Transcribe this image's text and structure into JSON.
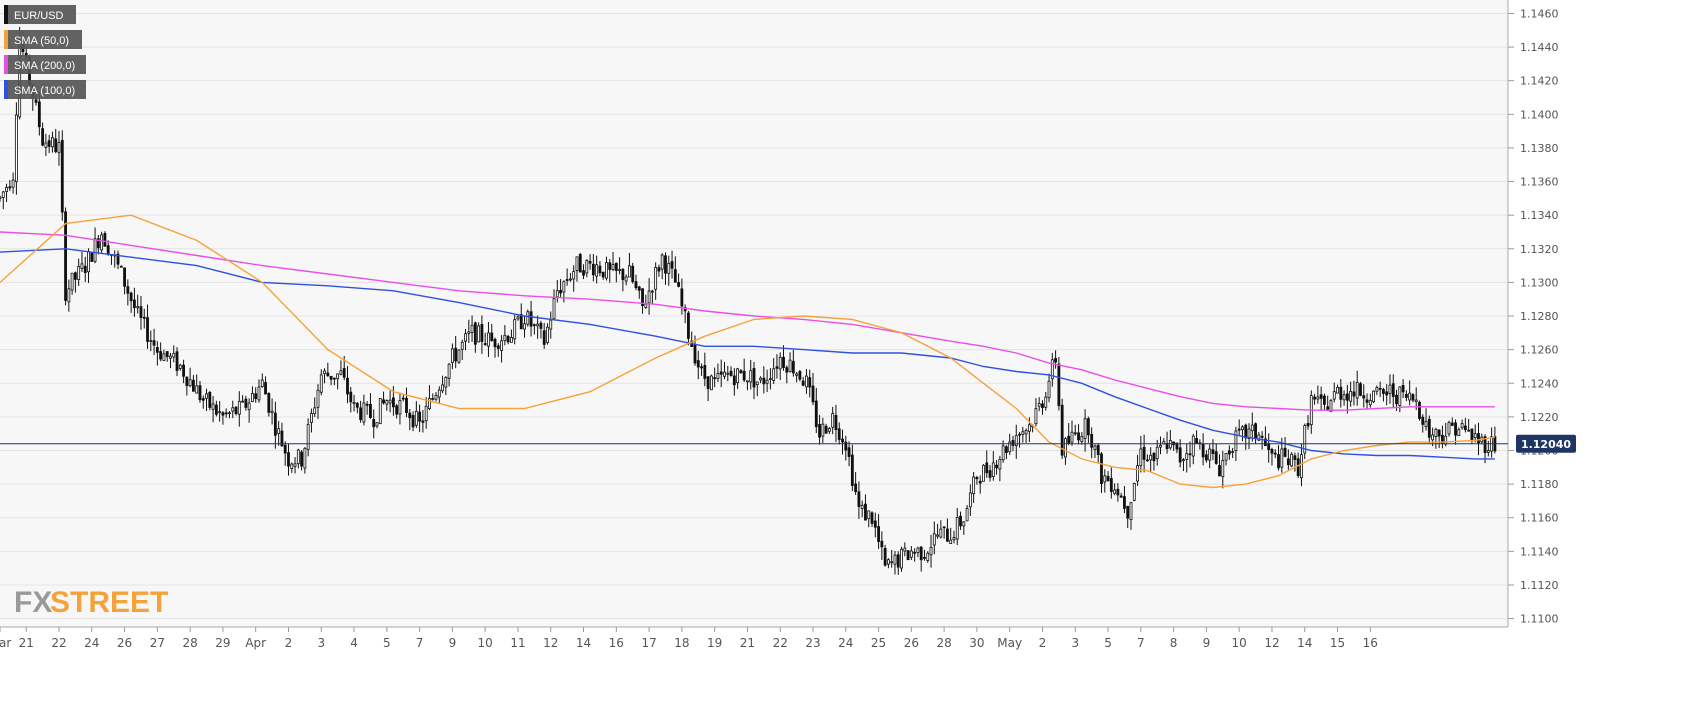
{
  "legend": [
    {
      "label": "EUR/USD",
      "color": "#111111"
    },
    {
      "label": "SMA (50,0)",
      "color": "#f5a23a"
    },
    {
      "label": "SMA (200,0)",
      "color": "#e84fe8"
    },
    {
      "label": "SMA (100,0)",
      "color": "#3050e0"
    }
  ],
  "brand": {
    "part1": "FX",
    "part2": "STREET",
    "color1": "#9a9a9a",
    "color2": "#f5a23a"
  },
  "price_tag": {
    "value": "1.12040",
    "color": "#1f3566"
  },
  "colors": {
    "background": "#f7f7f7",
    "grid": "#e4e4e4",
    "bull_fill": "#ffffff",
    "bear_fill": "#111111",
    "candle_stroke": "#111111",
    "last_price_line": "#1f3566"
  },
  "chart_data": {
    "type": "candlestick",
    "symbol": "EUR/USD",
    "ylim": [
      1.1095,
      1.1468
    ],
    "y_ticks": [
      "1.1460",
      "1.1440",
      "1.1420",
      "1.1400",
      "1.1380",
      "1.1360",
      "1.1340",
      "1.1320",
      "1.1300",
      "1.1280",
      "1.1260",
      "1.1240",
      "1.1220",
      "1.1200",
      "1.1180",
      "1.1160",
      "1.1140",
      "1.1120",
      "1.1100"
    ],
    "x_ticks": [
      {
        "label": "Mar",
        "x": 0
      },
      {
        "label": "21",
        "x": 8
      },
      {
        "label": "22",
        "x": 18
      },
      {
        "label": "24",
        "x": 28
      },
      {
        "label": "26",
        "x": 38
      },
      {
        "label": "27",
        "x": 48
      },
      {
        "label": "28",
        "x": 58
      },
      {
        "label": "29",
        "x": 68
      },
      {
        "label": "Apr",
        "x": 78
      },
      {
        "label": "2",
        "x": 88
      },
      {
        "label": "3",
        "x": 98
      },
      {
        "label": "4",
        "x": 108
      },
      {
        "label": "5",
        "x": 118
      },
      {
        "label": "7",
        "x": 128
      },
      {
        "label": "9",
        "x": 138
      },
      {
        "label": "10",
        "x": 148
      },
      {
        "label": "11",
        "x": 158
      },
      {
        "label": "12",
        "x": 168
      },
      {
        "label": "14",
        "x": 178
      },
      {
        "label": "16",
        "x": 188
      },
      {
        "label": "17",
        "x": 198
      },
      {
        "label": "18",
        "x": 208
      },
      {
        "label": "19",
        "x": 218
      },
      {
        "label": "21",
        "x": 228
      },
      {
        "label": "22",
        "x": 238
      },
      {
        "label": "23",
        "x": 248
      },
      {
        "label": "24",
        "x": 258
      },
      {
        "label": "25",
        "x": 268
      },
      {
        "label": "26",
        "x": 278
      },
      {
        "label": "28",
        "x": 288
      },
      {
        "label": "30",
        "x": 298
      },
      {
        "label": "May",
        "x": 308
      },
      {
        "label": "2",
        "x": 318
      },
      {
        "label": "3",
        "x": 328
      },
      {
        "label": "5",
        "x": 338
      },
      {
        "label": "7",
        "x": 348
      },
      {
        "label": "8",
        "x": 358
      },
      {
        "label": "9",
        "x": 368
      },
      {
        "label": "10",
        "x": 378
      },
      {
        "label": "12",
        "x": 388
      },
      {
        "label": "14",
        "x": 398
      },
      {
        "label": "15",
        "x": 408
      },
      {
        "label": "16",
        "x": 418
      }
    ],
    "last_price": 1.1204,
    "anchors": [
      [
        0,
        1.135
      ],
      [
        4,
        1.1365
      ],
      [
        6,
        1.1445
      ],
      [
        9,
        1.142
      ],
      [
        13,
        1.1385
      ],
      [
        18,
        1.138
      ],
      [
        20,
        1.1295
      ],
      [
        26,
        1.131
      ],
      [
        31,
        1.133
      ],
      [
        37,
        1.1305
      ],
      [
        42,
        1.128
      ],
      [
        48,
        1.126
      ],
      [
        55,
        1.125
      ],
      [
        62,
        1.123
      ],
      [
        68,
        1.122
      ],
      [
        74,
        1.1225
      ],
      [
        80,
        1.124
      ],
      [
        84,
        1.1215
      ],
      [
        88,
        1.1195
      ],
      [
        92,
        1.1195
      ],
      [
        98,
        1.1245
      ],
      [
        104,
        1.1245
      ],
      [
        108,
        1.1225
      ],
      [
        114,
        1.122
      ],
      [
        118,
        1.123
      ],
      [
        124,
        1.1225
      ],
      [
        128,
        1.1215
      ],
      [
        134,
        1.124
      ],
      [
        138,
        1.1255
      ],
      [
        144,
        1.127
      ],
      [
        150,
        1.1265
      ],
      [
        156,
        1.127
      ],
      [
        160,
        1.128
      ],
      [
        166,
        1.1265
      ],
      [
        170,
        1.1295
      ],
      [
        176,
        1.131
      ],
      [
        182,
        1.131
      ],
      [
        186,
        1.1305
      ],
      [
        192,
        1.1305
      ],
      [
        196,
        1.1285
      ],
      [
        202,
        1.1315
      ],
      [
        206,
        1.13
      ],
      [
        210,
        1.127
      ],
      [
        214,
        1.1245
      ],
      [
        218,
        1.124
      ],
      [
        222,
        1.1245
      ],
      [
        228,
        1.1245
      ],
      [
        232,
        1.124
      ],
      [
        238,
        1.1255
      ],
      [
        242,
        1.125
      ],
      [
        246,
        1.124
      ],
      [
        250,
        1.121
      ],
      [
        254,
        1.122
      ],
      [
        258,
        1.1205
      ],
      [
        262,
        1.1165
      ],
      [
        266,
        1.116
      ],
      [
        270,
        1.113
      ],
      [
        274,
        1.1135
      ],
      [
        278,
        1.114
      ],
      [
        282,
        1.114
      ],
      [
        286,
        1.115
      ],
      [
        290,
        1.115
      ],
      [
        294,
        1.116
      ],
      [
        298,
        1.1185
      ],
      [
        302,
        1.119
      ],
      [
        306,
        1.12
      ],
      [
        310,
        1.121
      ],
      [
        314,
        1.1215
      ],
      [
        318,
        1.123
      ],
      [
        322,
        1.1255
      ],
      [
        324,
        1.12
      ],
      [
        328,
        1.121
      ],
      [
        332,
        1.1215
      ],
      [
        336,
        1.1185
      ],
      [
        340,
        1.118
      ],
      [
        344,
        1.1165
      ],
      [
        348,
        1.12
      ],
      [
        352,
        1.1195
      ],
      [
        356,
        1.1205
      ],
      [
        360,
        1.1195
      ],
      [
        364,
        1.1205
      ],
      [
        368,
        1.12
      ],
      [
        372,
        1.119
      ],
      [
        376,
        1.1205
      ],
      [
        380,
        1.121
      ],
      [
        384,
        1.121
      ],
      [
        388,
        1.1195
      ],
      [
        392,
        1.1195
      ],
      [
        396,
        1.119
      ],
      [
        400,
        1.123
      ],
      [
        404,
        1.1225
      ],
      [
        408,
        1.1235
      ],
      [
        412,
        1.1235
      ],
      [
        416,
        1.1235
      ],
      [
        420,
        1.1232
      ],
      [
        424,
        1.1235
      ],
      [
        428,
        1.1232
      ],
      [
        432,
        1.123
      ],
      [
        436,
        1.121
      ],
      [
        440,
        1.121
      ],
      [
        444,
        1.1215
      ],
      [
        448,
        1.121
      ],
      [
        452,
        1.1205
      ],
      [
        456,
        1.1204
      ]
    ],
    "sma50": [
      [
        0,
        1.13
      ],
      [
        20,
        1.1335
      ],
      [
        40,
        1.134
      ],
      [
        60,
        1.1325
      ],
      [
        80,
        1.13
      ],
      [
        100,
        1.126
      ],
      [
        120,
        1.1235
      ],
      [
        140,
        1.1225
      ],
      [
        160,
        1.1225
      ],
      [
        180,
        1.1235
      ],
      [
        200,
        1.1255
      ],
      [
        215,
        1.1268
      ],
      [
        230,
        1.1278
      ],
      [
        245,
        1.128
      ],
      [
        260,
        1.1278
      ],
      [
        275,
        1.127
      ],
      [
        290,
        1.1255
      ],
      [
        300,
        1.124
      ],
      [
        310,
        1.1225
      ],
      [
        320,
        1.1205
      ],
      [
        330,
        1.1195
      ],
      [
        340,
        1.119
      ],
      [
        350,
        1.1188
      ],
      [
        360,
        1.118
      ],
      [
        370,
        1.1178
      ],
      [
        380,
        1.118
      ],
      [
        390,
        1.1185
      ],
      [
        400,
        1.1195
      ],
      [
        410,
        1.12
      ],
      [
        420,
        1.1203
      ],
      [
        430,
        1.1205
      ],
      [
        440,
        1.1205
      ],
      [
        450,
        1.1206
      ],
      [
        456,
        1.1208
      ]
    ],
    "sma100": [
      [
        0,
        1.1318
      ],
      [
        20,
        1.132
      ],
      [
        40,
        1.1315
      ],
      [
        60,
        1.131
      ],
      [
        80,
        1.13
      ],
      [
        100,
        1.1298
      ],
      [
        120,
        1.1295
      ],
      [
        140,
        1.1288
      ],
      [
        160,
        1.128
      ],
      [
        180,
        1.1275
      ],
      [
        200,
        1.1268
      ],
      [
        215,
        1.1262
      ],
      [
        230,
        1.1262
      ],
      [
        245,
        1.126
      ],
      [
        260,
        1.1258
      ],
      [
        275,
        1.1258
      ],
      [
        290,
        1.1255
      ],
      [
        300,
        1.125
      ],
      [
        310,
        1.1247
      ],
      [
        320,
        1.1245
      ],
      [
        330,
        1.124
      ],
      [
        340,
        1.1232
      ],
      [
        350,
        1.1225
      ],
      [
        360,
        1.1218
      ],
      [
        370,
        1.1212
      ],
      [
        380,
        1.1208
      ],
      [
        390,
        1.1205
      ],
      [
        400,
        1.12
      ],
      [
        410,
        1.1198
      ],
      [
        420,
        1.1197
      ],
      [
        430,
        1.1197
      ],
      [
        440,
        1.1196
      ],
      [
        450,
        1.1195
      ],
      [
        456,
        1.1195
      ]
    ],
    "sma200": [
      [
        0,
        1.133
      ],
      [
        20,
        1.1328
      ],
      [
        40,
        1.1322
      ],
      [
        60,
        1.1316
      ],
      [
        80,
        1.131
      ],
      [
        100,
        1.1305
      ],
      [
        120,
        1.13
      ],
      [
        140,
        1.1295
      ],
      [
        160,
        1.1292
      ],
      [
        180,
        1.129
      ],
      [
        200,
        1.1287
      ],
      [
        215,
        1.1283
      ],
      [
        230,
        1.128
      ],
      [
        245,
        1.1278
      ],
      [
        260,
        1.1275
      ],
      [
        275,
        1.127
      ],
      [
        290,
        1.1265
      ],
      [
        300,
        1.1262
      ],
      [
        310,
        1.1258
      ],
      [
        320,
        1.1252
      ],
      [
        330,
        1.1248
      ],
      [
        340,
        1.1242
      ],
      [
        350,
        1.1237
      ],
      [
        360,
        1.1232
      ],
      [
        370,
        1.1228
      ],
      [
        380,
        1.1226
      ],
      [
        390,
        1.1225
      ],
      [
        400,
        1.1224
      ],
      [
        410,
        1.1224
      ],
      [
        420,
        1.1225
      ],
      [
        430,
        1.1226
      ],
      [
        440,
        1.1226
      ],
      [
        450,
        1.1226
      ],
      [
        456,
        1.1226
      ]
    ]
  }
}
